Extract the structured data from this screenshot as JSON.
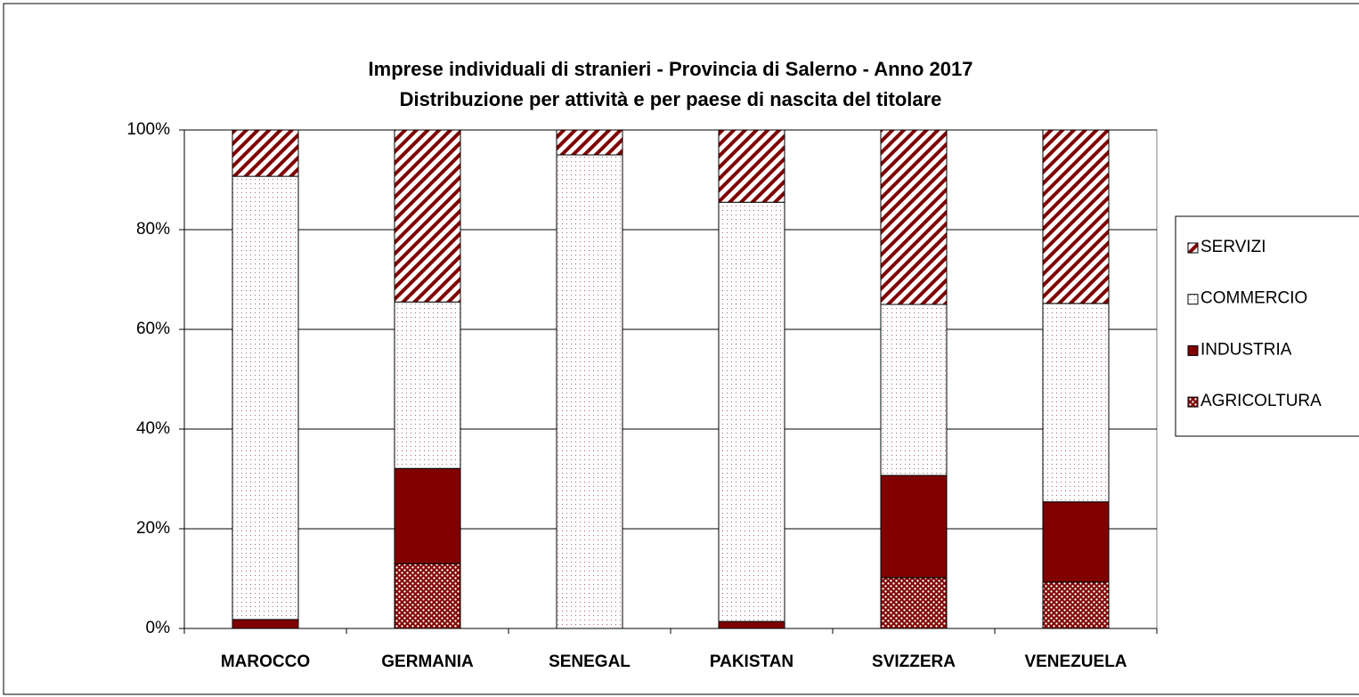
{
  "chart_data": {
    "type": "stacked_bar",
    "title": "Imprese individuali di stranieri - Provincia di Salerno - Anno 2017",
    "subtitle": "Distribuzione per attività e per paese di nascita del titolare",
    "categories": [
      "MAROCCO",
      "GERMANIA",
      "SENEGAL",
      "PAKISTAN",
      "SVIZZERA",
      "VENEZUELA"
    ],
    "series": [
      {
        "name": "AGRICOLTURA",
        "color": "#800000",
        "pattern": "checks",
        "values": [
          0,
          13.0,
          0,
          0,
          10.2,
          9.3
        ]
      },
      {
        "name": "INDUSTRIA",
        "color": "#800000",
        "pattern": "solid",
        "values": [
          1.8,
          19.1,
          0,
          1.4,
          20.5,
          16.1
        ]
      },
      {
        "name": "COMMERCIO",
        "color": "#800000",
        "pattern": "dots",
        "values": [
          88.9,
          33.4,
          95.0,
          84.1,
          34.3,
          39.8
        ]
      },
      {
        "name": "SERVIZI",
        "color": "#800000",
        "pattern": "stripes",
        "values": [
          9.3,
          34.5,
          5.0,
          14.5,
          35.0,
          34.8
        ]
      }
    ],
    "ylim": [
      0,
      100
    ],
    "yticks": [
      {
        "value": 0,
        "label": "0%"
      },
      {
        "value": 20,
        "label": "20%"
      },
      {
        "value": 40,
        "label": "40%"
      },
      {
        "value": 60,
        "label": "60%"
      },
      {
        "value": 80,
        "label": "80%"
      },
      {
        "value": 100,
        "label": "100%"
      }
    ],
    "grid": true,
    "legend": "right"
  }
}
